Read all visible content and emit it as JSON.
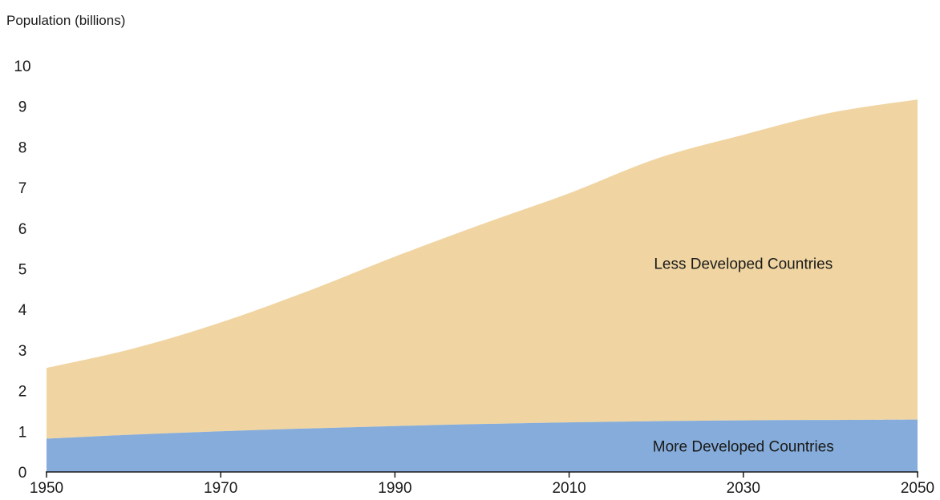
{
  "chart_data": {
    "type": "area",
    "stacked": true,
    "ylabel": "Population (billions)",
    "xlim": [
      1950,
      2050
    ],
    "ylim": [
      0,
      10
    ],
    "x_ticks": [
      1950,
      1970,
      1990,
      2010,
      2030,
      2050
    ],
    "y_ticks": [
      0,
      1,
      2,
      3,
      4,
      5,
      6,
      7,
      8,
      9,
      10
    ],
    "grid": false,
    "x": [
      1950,
      1960,
      1970,
      1980,
      1990,
      2000,
      2010,
      2020,
      2030,
      2040,
      2050
    ],
    "series": [
      {
        "name": "More Developed Countries",
        "color": "#85ACDA",
        "values": [
          0.82,
          0.92,
          1.0,
          1.07,
          1.13,
          1.18,
          1.22,
          1.25,
          1.27,
          1.28,
          1.29
        ]
      },
      {
        "name": "Less Developed Countries",
        "color": "#F0D5A2",
        "values": [
          1.74,
          2.12,
          2.68,
          3.38,
          4.17,
          4.92,
          5.64,
          6.46,
          7.03,
          7.56,
          7.88
        ]
      }
    ]
  }
}
